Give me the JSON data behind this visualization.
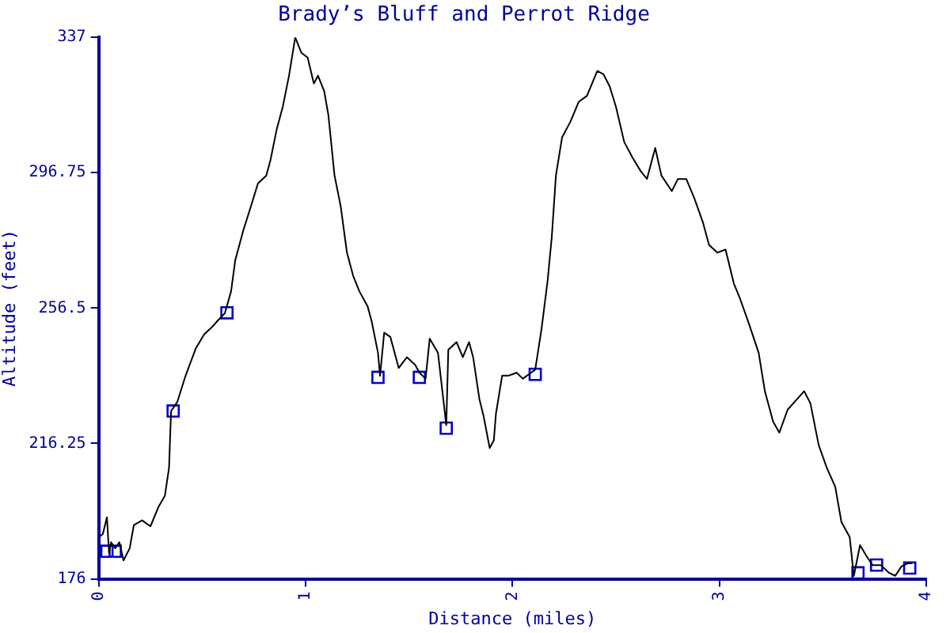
{
  "chart_data": {
    "type": "line",
    "title": "Brady’s Bluff and Perrot Ridge",
    "xlabel": "Distance (miles)",
    "ylabel": "Altitude (feet)",
    "xlim": [
      0,
      4
    ],
    "xticks": [
      0,
      1,
      2,
      3,
      4
    ],
    "ylim": [
      176,
      337
    ],
    "yticks": [
      176,
      216.25,
      256.5,
      296.75,
      337
    ],
    "grid": false,
    "legend": false,
    "series": [
      {
        "color": "#000000",
        "marker": "none",
        "x": [
          0,
          0.02,
          0.04,
          0.05,
          0.06,
          0.08,
          0.1,
          0.12,
          0.15,
          0.17,
          0.21,
          0.25,
          0.29,
          0.32,
          0.34,
          0.35,
          0.38,
          0.42,
          0.47,
          0.51,
          0.55,
          0.57,
          0.61,
          0.64,
          0.66,
          0.7,
          0.74,
          0.77,
          0.81,
          0.83,
          0.86,
          0.89,
          0.92,
          0.95,
          0.98,
          1.01,
          1.04,
          1.06,
          1.09,
          1.11,
          1.14,
          1.17,
          1.2,
          1.23,
          1.26,
          1.3,
          1.32,
          1.35,
          1.36,
          1.38,
          1.41,
          1.45,
          1.49,
          1.53,
          1.55,
          1.58,
          1.6,
          1.64,
          1.68,
          1.69,
          1.73,
          1.76,
          1.79,
          1.81,
          1.84,
          1.86,
          1.89,
          1.91,
          1.92,
          1.95,
          1.98,
          2.02,
          2.05,
          2.09,
          2.11,
          2.14,
          2.17,
          2.19,
          2.21,
          2.24,
          2.28,
          2.32,
          2.36,
          2.41,
          2.44,
          2.47,
          2.5,
          2.54,
          2.58,
          2.62,
          2.65,
          2.69,
          2.72,
          2.77,
          2.8,
          2.84,
          2.88,
          2.92,
          2.95,
          2.99,
          3.03,
          3.07,
          3.1,
          3.14,
          3.19,
          3.22,
          3.26,
          3.29,
          3.33,
          3.41,
          3.44,
          3.48,
          3.52,
          3.56,
          3.59,
          3.63,
          3.65,
          3.68,
          3.71,
          3.74,
          3.78,
          3.82,
          3.85,
          3.88,
          3.91,
          3.93
        ],
        "values": [
          188.4,
          189.3,
          194.3,
          183.7,
          186.9,
          185.1,
          186.9,
          181.5,
          185.1,
          192,
          193.4,
          191.6,
          197.5,
          200.7,
          209,
          225.9,
          228.6,
          236.4,
          244.6,
          248.7,
          251,
          252.4,
          255,
          261.5,
          270.7,
          279.8,
          287.6,
          293.6,
          295.9,
          300.4,
          309.5,
          316.4,
          325.6,
          337,
          332.4,
          331,
          323.3,
          325.6,
          321,
          314,
          295.9,
          286.7,
          273,
          266.1,
          261.5,
          257,
          252.4,
          243.2,
          236.4,
          249.2,
          247.9,
          238.7,
          241.9,
          239.6,
          237.3,
          235.5,
          247.4,
          243.2,
          221.7,
          244.1,
          246.4,
          241.9,
          246.4,
          241.9,
          229.5,
          224.5,
          214.9,
          217.2,
          225,
          236.4,
          236.4,
          237.3,
          235.5,
          237.3,
          238.2,
          250.1,
          264.7,
          277.6,
          295.9,
          307.3,
          311.9,
          317.8,
          319.6,
          327,
          326,
          322.4,
          316.4,
          305.9,
          301.3,
          297.2,
          294.9,
          304.1,
          295.9,
          291.3,
          294.9,
          294.9,
          289,
          282.1,
          275.3,
          273,
          273.9,
          263.8,
          259.3,
          252.4,
          243.2,
          231.8,
          222.7,
          219.5,
          226.3,
          231.8,
          228.2,
          215.8,
          208.9,
          203.4,
          192.9,
          188.4,
          176.9,
          186,
          182.9,
          180.1,
          180.1,
          177.8,
          176.9,
          179.7,
          180.6,
          180.6
        ]
      },
      {
        "type": "scatter",
        "color": "#0000cc",
        "marker": "square",
        "x": [
          0.04,
          0.08,
          0.36,
          0.62,
          1.35,
          1.55,
          1.68,
          2.11,
          3.67,
          3.76,
          3.92
        ],
        "values": [
          184.2,
          184.2,
          225.9,
          255.1,
          235.9,
          235.9,
          220.8,
          236.8,
          177.8,
          180.1,
          179.2
        ]
      }
    ]
  }
}
